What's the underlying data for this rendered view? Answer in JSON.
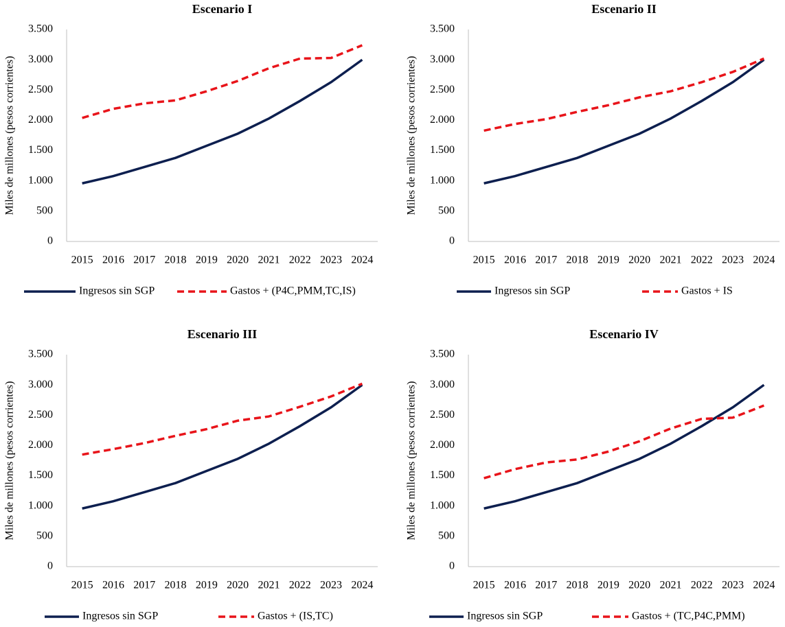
{
  "chart_data": [
    {
      "type": "line",
      "title": "Escenario I",
      "ylabel": "Miles de millones (pesos corrientes)",
      "categories": [
        "2015",
        "2016",
        "2017",
        "2018",
        "2019",
        "2020",
        "2021",
        "2022",
        "2023",
        "2024"
      ],
      "series": [
        {
          "name": "Ingresos sin SGP",
          "color": "#0d1f4f",
          "linestyle": "solid",
          "values": [
            960,
            1080,
            1230,
            1380,
            1580,
            1780,
            2030,
            2320,
            2630,
            3000
          ]
        },
        {
          "name": "Gastos + (P4C,PMM,TC,IS)",
          "color": "#e8141a",
          "linestyle": "dashed",
          "values": [
            2040,
            2190,
            2280,
            2330,
            2480,
            2650,
            2860,
            3020,
            3030,
            3240
          ]
        }
      ],
      "ylim": [
        0,
        3500
      ],
      "yticks": [
        0,
        500,
        {
          "value": 1000,
          "label": "1.000"
        },
        {
          "value": 1500,
          "label": "1.500"
        },
        {
          "value": 2000,
          "label": "2.000"
        },
        {
          "value": 2500,
          "label": "2.500"
        },
        {
          "value": 3000,
          "label": "3.000"
        },
        {
          "value": 3500,
          "label": "3.500"
        }
      ],
      "grid": false
    },
    {
      "type": "line",
      "title": "Escenario II",
      "ylabel": "Miles de millones (pesos corrientes)",
      "categories": [
        "2015",
        "2016",
        "2017",
        "2018",
        "2019",
        "2020",
        "2021",
        "2022",
        "2023",
        "2024"
      ],
      "series": [
        {
          "name": "Ingresos sin SGP",
          "color": "#0d1f4f",
          "linestyle": "solid",
          "values": [
            960,
            1080,
            1230,
            1380,
            1580,
            1780,
            2030,
            2320,
            2630,
            3000
          ]
        },
        {
          "name": "Gastos + IS",
          "color": "#e8141a",
          "linestyle": "dashed",
          "values": [
            1830,
            1940,
            2020,
            2140,
            2250,
            2380,
            2480,
            2630,
            2800,
            3020
          ]
        }
      ],
      "ylim": [
        0,
        3500
      ],
      "yticks": [
        0,
        500,
        {
          "value": 1000,
          "label": "1.000"
        },
        {
          "value": 1500,
          "label": "1.500"
        },
        {
          "value": 2000,
          "label": "2.000"
        },
        {
          "value": 2500,
          "label": "2.500"
        },
        {
          "value": 3000,
          "label": "3.000"
        },
        {
          "value": 3500,
          "label": "3.500"
        }
      ],
      "grid": false
    },
    {
      "type": "line",
      "title": "Escenario III",
      "ylabel": "Miles de millones (pesos corrientes)",
      "categories": [
        "2015",
        "2016",
        "2017",
        "2018",
        "2019",
        "2020",
        "2021",
        "2022",
        "2023",
        "2024"
      ],
      "series": [
        {
          "name": "Ingresos sin SGP",
          "color": "#0d1f4f",
          "linestyle": "solid",
          "values": [
            960,
            1080,
            1230,
            1380,
            1580,
            1780,
            2030,
            2320,
            2630,
            3000
          ]
        },
        {
          "name": "Gastos + (IS,TC)",
          "color": "#e8141a",
          "linestyle": "dashed",
          "values": [
            1850,
            1940,
            2040,
            2160,
            2270,
            2410,
            2480,
            2640,
            2810,
            3020
          ]
        }
      ],
      "ylim": [
        0,
        3500
      ],
      "yticks": [
        0,
        500,
        {
          "value": 1000,
          "label": "1.000"
        },
        {
          "value": 1500,
          "label": "1.500"
        },
        {
          "value": 2000,
          "label": "2.000"
        },
        {
          "value": 2500,
          "label": "2.500"
        },
        {
          "value": 3000,
          "label": "3.000"
        },
        {
          "value": 3500,
          "label": "3.500"
        }
      ],
      "grid": false
    },
    {
      "type": "line",
      "title": "Escenario IV",
      "ylabel": "Miles de millones (pesos corrientes)",
      "categories": [
        "2015",
        "2016",
        "2017",
        "2018",
        "2019",
        "2020",
        "2021",
        "2022",
        "2023",
        "2024"
      ],
      "series": [
        {
          "name": "Ingresos sin SGP",
          "color": "#0d1f4f",
          "linestyle": "solid",
          "values": [
            960,
            1080,
            1230,
            1380,
            1580,
            1780,
            2030,
            2320,
            2630,
            3000
          ]
        },
        {
          "name": "Gastos + (TC,P4C,PMM)",
          "color": "#e8141a",
          "linestyle": "dashed",
          "values": [
            1460,
            1610,
            1720,
            1770,
            1900,
            2070,
            2280,
            2440,
            2460,
            2660
          ]
        }
      ],
      "ylim": [
        0,
        3500
      ],
      "yticks": [
        0,
        500,
        {
          "value": 1000,
          "label": "1.000"
        },
        {
          "value": 1500,
          "label": "1.500"
        },
        {
          "value": 2000,
          "label": "2.000"
        },
        {
          "value": 2500,
          "label": "2.500"
        },
        {
          "value": 3000,
          "label": "3.000"
        },
        {
          "value": 3500,
          "label": "3.500"
        }
      ],
      "grid": false
    }
  ]
}
